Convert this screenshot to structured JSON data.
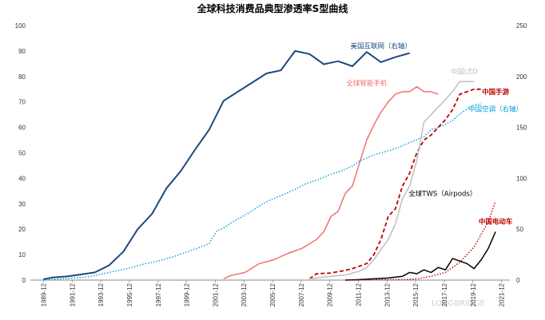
{
  "chart_data": {
    "type": "line",
    "title": "全球科技消费品典型渗透率S型曲线",
    "xlabel": "",
    "ylabel_left": "",
    "ylabel_right": "",
    "x_start_year": 1989,
    "x_end_year": 2022.5,
    "x_tick_labels": [
      "1989-12",
      "1991-12",
      "1993-12",
      "1995-12",
      "1997-12",
      "1999-12",
      "2001-12",
      "2003-12",
      "2005-12",
      "2007-12",
      "2009-12",
      "2011-12",
      "2013-12",
      "2015-12",
      "2017-12",
      "2019-12",
      "2021-12"
    ],
    "y_left": {
      "min": 0,
      "max": 100,
      "ticks": [
        0,
        10,
        20,
        30,
        40,
        50,
        60,
        70,
        80,
        90,
        100
      ]
    },
    "y_right": {
      "min": 0,
      "max": 250,
      "ticks": [
        0,
        50,
        100,
        150,
        200,
        250
      ]
    },
    "watermark": "LONGBRIDGE",
    "series": [
      {
        "name": "美国互联网（右轴）",
        "axis": "right",
        "color": "#1f497d",
        "style": "solid",
        "width": 2,
        "x": [
          1989.9,
          1990.5,
          1991.5,
          1992.5,
          1993.5,
          1994.5,
          1995.5,
          1996.5,
          1997.5,
          1998.5,
          1999.5,
          2000.5,
          2001.5,
          2002.5,
          2003.5,
          2004.5,
          2005.5,
          2006.5,
          2007.5,
          2008.5,
          2009.5,
          2010.5,
          2011.5,
          2012.5,
          2013.5,
          2014.5,
          2015.5
        ],
        "values": [
          0.8,
          2.5,
          3.5,
          5.5,
          7.5,
          14.5,
          28,
          50,
          65,
          90,
          107,
          128,
          148,
          176,
          185,
          194,
          203,
          206,
          225,
          222,
          212,
          215,
          210,
          224,
          214,
          219,
          223
        ],
        "label_pos": [
          2013.5,
          230
        ]
      },
      {
        "name": "中国空调（右轴）",
        "axis": "right",
        "color": "#00a0e0",
        "style": "dotted",
        "width": 1.4,
        "x": [
          1989.9,
          1991,
          1992,
          1993,
          1994,
          1995,
          1996,
          1997,
          1998,
          1999,
          2000,
          2001,
          2001.5,
          2002,
          2002.5,
          2003,
          2003.5,
          2004,
          2004.5,
          2005,
          2005.5,
          2006,
          2006.5,
          2007,
          2007.5,
          2008,
          2008.5,
          2009,
          2009.5,
          2010,
          2010.5,
          2011,
          2011.5,
          2012,
          2012.5,
          2013,
          2013.5,
          2014,
          2014.5,
          2015,
          2015.5,
          2016,
          2016.5,
          2017,
          2017.5,
          2018,
          2018.5,
          2019,
          2019.5,
          2020,
          2020.5
        ],
        "values": [
          0.5,
          1,
          2,
          3,
          6,
          9,
          12,
          16,
          19,
          23,
          28,
          33,
          36,
          48,
          51,
          56,
          60,
          64,
          68,
          73,
          77,
          80,
          83,
          86,
          89,
          93,
          96,
          98,
          101,
          104,
          106,
          109,
          112,
          117,
          120,
          123,
          125,
          127,
          129,
          132,
          135,
          138,
          141,
          148,
          150,
          153,
          157,
          163,
          168,
          172,
          173
        ],
        "label_pos": [
          2021.5,
          168
        ]
      },
      {
        "name": "全球智能手机",
        "axis": "left",
        "color": "#f0706a",
        "style": "solid",
        "width": 1.5,
        "x": [
          2002.5,
          2003,
          2004,
          2005,
          2006,
          2007,
          2008,
          2009,
          2009.5,
          2010,
          2010.5,
          2011,
          2011.5,
          2012,
          2012.5,
          2013,
          2013.5,
          2014,
          2014.5,
          2015,
          2015.5,
          2016,
          2016.5,
          2017,
          2017.5
        ],
        "values": [
          0.5,
          1.8,
          3,
          6.5,
          8,
          10.5,
          12.5,
          16,
          19,
          25,
          27,
          34,
          37,
          46,
          55,
          61,
          66,
          70,
          73,
          74,
          74,
          76,
          74,
          74,
          73
        ],
        "label_pos": [
          2012.5,
          77.5
        ]
      },
      {
        "name": "中国手游",
        "axis": "left",
        "color": "#c00000",
        "style": "dashed",
        "width": 1.8,
        "x": [
          2008.5,
          2009,
          2010,
          2011,
          2011.5,
          2012,
          2012.5,
          2013,
          2013.5,
          2014,
          2014.5,
          2015,
          2015.5,
          2016,
          2016.5,
          2017,
          2017.5,
          2018,
          2018.5,
          2019,
          2019.5,
          2020,
          2020.5
        ],
        "values": [
          0.5,
          2.5,
          2.8,
          3.8,
          4.5,
          5.5,
          6.5,
          10,
          16,
          25,
          28,
          37,
          42,
          50,
          55,
          57,
          60,
          63,
          67,
          73,
          74,
          75,
          75
        ],
        "label_pos": [
          2021.5,
          74
        ]
      },
      {
        "name": "中国LED",
        "axis": "left",
        "color": "#bfbfbf",
        "style": "solid",
        "width": 1.5,
        "x": [
          2008.5,
          2009,
          2010,
          2011,
          2012,
          2012.5,
          2013,
          2013.5,
          2014,
          2014.5,
          2015,
          2015.5,
          2016,
          2016.5,
          2017,
          2017.5,
          2018,
          2018.5,
          2019,
          2019.5,
          2020
        ],
        "values": [
          0.5,
          0.8,
          1.5,
          2,
          3.5,
          5,
          8,
          12,
          16,
          22,
          32,
          37,
          47,
          62,
          65,
          68,
          71,
          74,
          78,
          78,
          78
        ],
        "label_pos": [
          2019.3,
          82
        ]
      },
      {
        "name": "全球TWS（Airpods）",
        "axis": "left",
        "color": "#000000",
        "style": "solid",
        "width": 1.5,
        "x": [
          2011,
          2012,
          2013,
          2014,
          2015,
          2015.5,
          2016,
          2016.5,
          2017,
          2017.5,
          2018,
          2018.5,
          2019,
          2019.5,
          2020,
          2020.5,
          2021,
          2021.5
        ],
        "values": [
          0,
          0.2,
          0.5,
          0.8,
          1.5,
          3,
          2.5,
          4,
          3,
          5,
          4,
          8.5,
          7.5,
          6.5,
          4.5,
          8,
          12.5,
          19
        ],
        "label_pos": [
          2017.8,
          34
        ]
      },
      {
        "name": "中国电动车",
        "axis": "left",
        "color": "#c00000",
        "style": "dotted",
        "width": 1.4,
        "x": [
          2011,
          2013,
          2015,
          2016,
          2017,
          2018,
          2018.5,
          2019,
          2019.5,
          2020,
          2020.5,
          2021,
          2021.5
        ],
        "values": [
          0,
          0.1,
          0.2,
          0.5,
          1.5,
          3,
          5,
          7,
          10,
          13,
          18,
          23,
          31
        ],
        "label_pos": [
          2021.5,
          23
        ]
      }
    ]
  }
}
